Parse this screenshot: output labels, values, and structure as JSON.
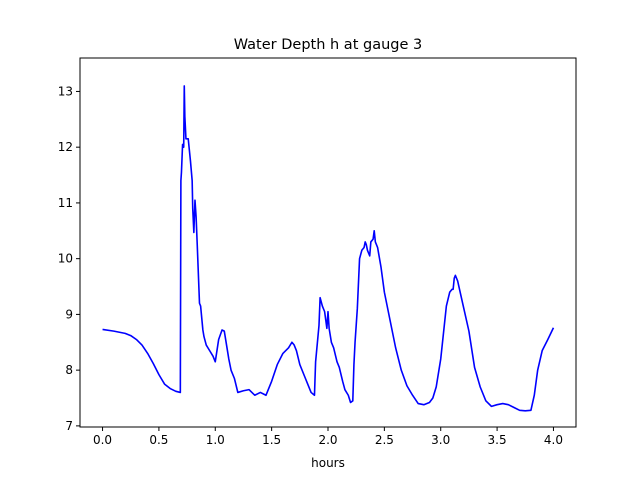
{
  "chart_data": {
    "type": "line",
    "title": "Water Depth h at gauge 3",
    "xlabel": "hours",
    "ylabel": "",
    "xlim": [
      -0.2,
      4.2
    ],
    "ylim": [
      6.98,
      13.6
    ],
    "xticks": [
      0.0,
      0.5,
      1.0,
      1.5,
      2.0,
      2.5,
      3.0,
      3.5,
      4.0
    ],
    "xtick_labels": [
      "0.0",
      "0.5",
      "1.0",
      "1.5",
      "2.0",
      "2.5",
      "3.0",
      "3.5",
      "4.0"
    ],
    "yticks": [
      7,
      8,
      9,
      10,
      11,
      12,
      13
    ],
    "ytick_labels": [
      "7",
      "8",
      "9",
      "10",
      "11",
      "12",
      "13"
    ],
    "grid": false,
    "legend": "none",
    "series": [
      {
        "color": "#0000ff",
        "x": [
          0.0,
          0.1,
          0.2,
          0.25,
          0.3,
          0.35,
          0.4,
          0.45,
          0.5,
          0.55,
          0.6,
          0.65,
          0.69,
          0.695,
          0.7,
          0.71,
          0.72,
          0.725,
          0.73,
          0.74,
          0.76,
          0.78,
          0.795,
          0.8,
          0.81,
          0.82,
          0.83,
          0.84,
          0.86,
          0.87,
          0.89,
          0.9,
          0.92,
          0.95,
          0.98,
          1.0,
          1.03,
          1.06,
          1.08,
          1.1,
          1.12,
          1.14,
          1.17,
          1.2,
          1.25,
          1.3,
          1.35,
          1.4,
          1.45,
          1.5,
          1.55,
          1.6,
          1.65,
          1.68,
          1.7,
          1.72,
          1.75,
          1.8,
          1.85,
          1.88,
          1.89,
          1.92,
          1.93,
          1.95,
          1.97,
          1.98,
          1.99,
          2.0,
          2.01,
          2.03,
          2.05,
          2.08,
          2.1,
          2.13,
          2.15,
          2.18,
          2.2,
          2.22,
          2.23,
          2.24,
          2.25,
          2.26,
          2.28,
          2.3,
          2.32,
          2.33,
          2.34,
          2.35,
          2.37,
          2.38,
          2.4,
          2.41,
          2.42,
          2.43,
          2.44,
          2.47,
          2.5,
          2.55,
          2.6,
          2.65,
          2.7,
          2.75,
          2.8,
          2.85,
          2.9,
          2.93,
          2.96,
          3.0,
          3.05,
          3.08,
          3.1,
          3.11,
          3.12,
          3.13,
          3.15,
          3.2,
          3.25,
          3.3,
          3.35,
          3.4,
          3.45,
          3.5,
          3.55,
          3.6,
          3.65,
          3.7,
          3.75,
          3.8,
          3.83,
          3.86,
          3.9,
          3.95,
          4.0
        ],
        "y": [
          8.73,
          8.7,
          8.66,
          8.62,
          8.55,
          8.45,
          8.3,
          8.12,
          7.92,
          7.75,
          7.67,
          7.62,
          7.6,
          11.4,
          11.55,
          12.05,
          12.0,
          13.1,
          12.55,
          12.15,
          12.15,
          11.75,
          11.4,
          10.9,
          10.47,
          11.05,
          10.75,
          10.25,
          9.2,
          9.15,
          8.72,
          8.6,
          8.45,
          8.35,
          8.25,
          8.15,
          8.55,
          8.72,
          8.7,
          8.45,
          8.2,
          8.0,
          7.85,
          7.6,
          7.63,
          7.65,
          7.55,
          7.6,
          7.55,
          7.8,
          8.1,
          8.3,
          8.4,
          8.5,
          8.45,
          8.35,
          8.1,
          7.85,
          7.6,
          7.55,
          8.15,
          8.8,
          9.3,
          9.15,
          9.05,
          8.9,
          8.75,
          9.05,
          8.75,
          8.5,
          8.4,
          8.15,
          8.05,
          7.8,
          7.65,
          7.55,
          7.42,
          7.45,
          8.1,
          8.5,
          8.8,
          9.1,
          10.0,
          10.15,
          10.2,
          10.3,
          10.25,
          10.15,
          10.05,
          10.3,
          10.35,
          10.5,
          10.3,
          10.25,
          10.2,
          9.85,
          9.4,
          8.9,
          8.4,
          8.0,
          7.72,
          7.55,
          7.4,
          7.38,
          7.42,
          7.5,
          7.7,
          8.2,
          9.15,
          9.4,
          9.45,
          9.45,
          9.65,
          9.7,
          9.6,
          9.15,
          8.7,
          8.05,
          7.7,
          7.45,
          7.35,
          7.38,
          7.4,
          7.38,
          7.33,
          7.28,
          7.27,
          7.28,
          7.55,
          8.0,
          8.35,
          8.55,
          8.76
        ]
      }
    ]
  }
}
